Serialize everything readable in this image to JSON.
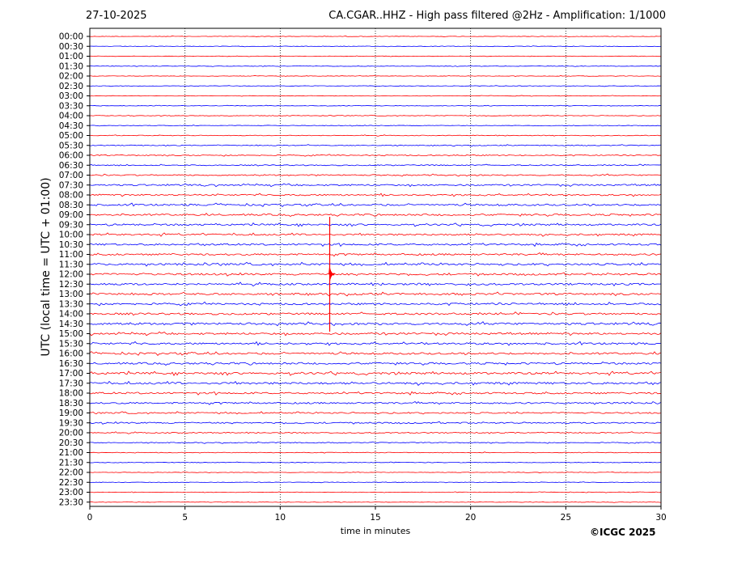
{
  "header": {
    "date": "27-10-2025",
    "title": "CA.CGAR..HHZ - High pass filtered @2Hz - Amplification: 1/1000"
  },
  "footer": {
    "copyright": "©ICGC 2025"
  },
  "chart_data": {
    "type": "line",
    "title": "CA.CGAR..HHZ - High pass filtered @2Hz - Amplification: 1/1000",
    "xlabel": "time in minutes",
    "ylabel": "UTC (local time = UTC + 01:00)",
    "xlim": [
      0,
      30
    ],
    "xticks": [
      0,
      5,
      10,
      15,
      20,
      25,
      30
    ],
    "grid": "vertical dotted lines at x ticks",
    "colors": {
      "red": "#ff0000",
      "blue": "#0000ff"
    },
    "traces": [
      {
        "label": "00:00",
        "color": "red",
        "noise": 0.3
      },
      {
        "label": "00:30",
        "color": "blue",
        "noise": 0.3
      },
      {
        "label": "01:00",
        "color": "red",
        "noise": 0.3
      },
      {
        "label": "01:30",
        "color": "blue",
        "noise": 0.3
      },
      {
        "label": "02:00",
        "color": "red",
        "noise": 0.3
      },
      {
        "label": "02:30",
        "color": "blue",
        "noise": 0.3
      },
      {
        "label": "03:00",
        "color": "red",
        "noise": 0.3
      },
      {
        "label": "03:30",
        "color": "blue",
        "noise": 0.3
      },
      {
        "label": "04:00",
        "color": "red",
        "noise": 0.35
      },
      {
        "label": "04:30",
        "color": "blue",
        "noise": 0.35
      },
      {
        "label": "05:00",
        "color": "red",
        "noise": 0.4
      },
      {
        "label": "05:30",
        "color": "blue",
        "noise": 0.5
      },
      {
        "label": "06:00",
        "color": "red",
        "noise": 0.6
      },
      {
        "label": "06:30",
        "color": "blue",
        "noise": 0.6
      },
      {
        "label": "07:00",
        "color": "red",
        "noise": 0.7
      },
      {
        "label": "07:30",
        "color": "blue",
        "noise": 0.9
      },
      {
        "label": "08:00",
        "color": "red",
        "noise": 0.9
      },
      {
        "label": "08:30",
        "color": "blue",
        "noise": 1.0
      },
      {
        "label": "09:00",
        "color": "red",
        "noise": 1.0
      },
      {
        "label": "09:30",
        "color": "blue",
        "noise": 1.0
      },
      {
        "label": "10:00",
        "color": "red",
        "noise": 1.0
      },
      {
        "label": "10:30",
        "color": "blue",
        "noise": 1.0
      },
      {
        "label": "11:00",
        "color": "red",
        "noise": 1.0
      },
      {
        "label": "11:30",
        "color": "blue",
        "noise": 1.1
      },
      {
        "label": "12:00",
        "color": "red",
        "noise": 1.1
      },
      {
        "label": "12:30",
        "color": "blue",
        "noise": 1.1
      },
      {
        "label": "13:00",
        "color": "red",
        "noise": 1.1
      },
      {
        "label": "13:30",
        "color": "blue",
        "noise": 1.1
      },
      {
        "label": "14:00",
        "color": "red",
        "noise": 1.1
      },
      {
        "label": "14:30",
        "color": "blue",
        "noise": 1.2
      },
      {
        "label": "15:00",
        "color": "red",
        "noise": 1.1
      },
      {
        "label": "15:30",
        "color": "blue",
        "noise": 1.1
      },
      {
        "label": "16:00",
        "color": "red",
        "noise": 1.1
      },
      {
        "label": "16:30",
        "color": "blue",
        "noise": 1.1
      },
      {
        "label": "17:00",
        "color": "red",
        "noise": 1.2
      },
      {
        "label": "17:30",
        "color": "blue",
        "noise": 1.2
      },
      {
        "label": "18:00",
        "color": "red",
        "noise": 1.0
      },
      {
        "label": "18:30",
        "color": "blue",
        "noise": 0.9
      },
      {
        "label": "19:00",
        "color": "red",
        "noise": 0.8
      },
      {
        "label": "19:30",
        "color": "blue",
        "noise": 0.8
      },
      {
        "label": "20:00",
        "color": "red",
        "noise": 0.6
      },
      {
        "label": "20:30",
        "color": "blue",
        "noise": 0.5
      },
      {
        "label": "21:00",
        "color": "red",
        "noise": 0.4
      },
      {
        "label": "21:30",
        "color": "blue",
        "noise": 0.35
      },
      {
        "label": "22:00",
        "color": "red",
        "noise": 0.3
      },
      {
        "label": "22:30",
        "color": "blue",
        "noise": 0.3
      },
      {
        "label": "23:00",
        "color": "red",
        "noise": 0.3
      },
      {
        "label": "23:30",
        "color": "red",
        "noise": 0.3
      }
    ],
    "events": [
      {
        "trace": "12:00",
        "minute": 12.6,
        "description": "seismic event",
        "color": "red"
      }
    ]
  }
}
